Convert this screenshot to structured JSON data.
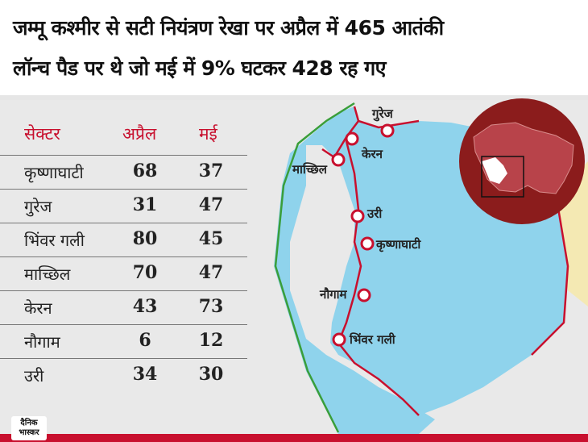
{
  "title": {
    "line1": "जम्मू कश्मीर से सटी नियंत्रण रेखा पर अप्रैल में 465 आतंकी",
    "line2": "लॉन्च पैड पर थे जो मई में 9% घटकर 428 रह गए"
  },
  "table": {
    "headers": [
      "सेक्टर",
      "अप्रैल",
      "मई"
    ],
    "rows": [
      {
        "sector": "कृष्णाघाटी",
        "april": "68",
        "may": "37"
      },
      {
        "sector": "गुरेज",
        "april": "31",
        "may": "47"
      },
      {
        "sector": "भिंवर गली",
        "april": "80",
        "may": "45"
      },
      {
        "sector": "माच्छिल",
        "april": "70",
        "may": "47"
      },
      {
        "sector": "केरन",
        "april": "43",
        "may": "73"
      },
      {
        "sector": "नौगाम",
        "april": "6",
        "may": "12"
      },
      {
        "sector": "उरी",
        "april": "34",
        "may": "30"
      }
    ]
  },
  "chart_data": {
    "type": "table",
    "columns": [
      "सेक्टर",
      "अप्रैल",
      "मई"
    ],
    "rows": [
      [
        "कृष्णाघाटी",
        68,
        37
      ],
      [
        "गुरेज",
        31,
        47
      ],
      [
        "भिंवर गली",
        80,
        45
      ],
      [
        "माच्छिल",
        70,
        47
      ],
      [
        "केरन",
        43,
        73
      ],
      [
        "नौगाम",
        6,
        12
      ],
      [
        "उरी",
        34,
        30
      ]
    ]
  },
  "map": {
    "labels": {
      "gurez": "गुरेज",
      "keran": "केरन",
      "machhil": "माच्छिल",
      "uri": "उरी",
      "krishnaghati": "कृष्णाघाटी",
      "naugam": "नौगाम",
      "bhimbergali": "भिंवर गली"
    }
  },
  "logo": {
    "line1": "दैनिक",
    "line2": "भास्कर"
  },
  "colors": {
    "accent": "#c8102e",
    "region_blue": "#8fd3ec",
    "region_yellow": "#f4e9b3",
    "inset_bg": "#8b1c1c"
  }
}
